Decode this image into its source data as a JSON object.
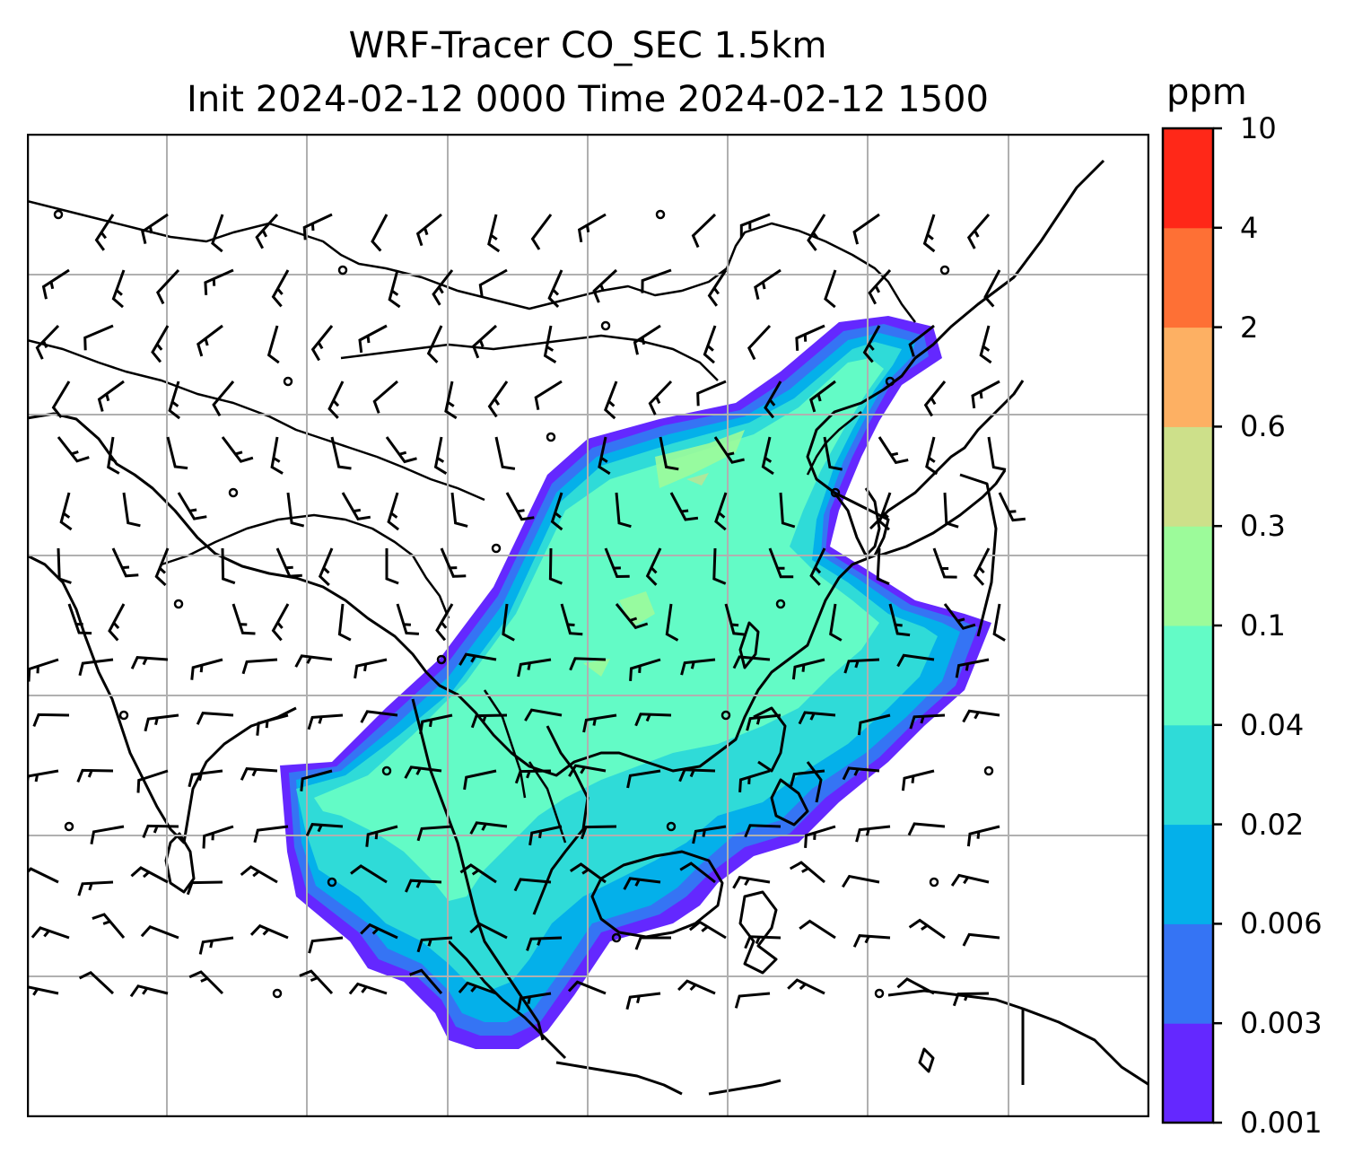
{
  "title": {
    "line1": "WRF-Tracer CO_SEC 1.5km",
    "line2": "Init 2024-02-12 0000 Time 2024-02-12 1500"
  },
  "colorbar": {
    "unit": "ppm",
    "levels": [
      "0.001",
      "0.003",
      "0.006",
      "0.02",
      "0.04",
      "0.1",
      "0.3",
      "0.6",
      "2",
      "4",
      "10"
    ],
    "colors": [
      "#6428ff",
      "#3574f4",
      "#04b0ea",
      "#2fdbd8",
      "#63fbc6",
      "#9cfb9a",
      "#cde08a",
      "#fdb063",
      "#fe7035",
      "#ff2818"
    ]
  },
  "map": {
    "gridlines": true,
    "overlay": "wind barbs",
    "background": "#ffffff"
  }
}
